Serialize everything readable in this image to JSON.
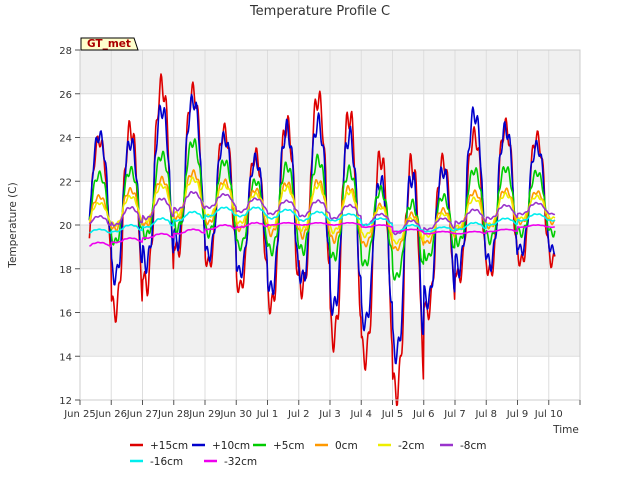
{
  "chart_data": {
    "type": "line",
    "title": "Temperature Profile C",
    "xlabel": "Time",
    "ylabel": "Temperature (C)",
    "badge": "GT_met",
    "ylim": [
      12,
      28
    ],
    "yticks": [
      12,
      14,
      16,
      18,
      20,
      22,
      24,
      26,
      28
    ],
    "xlim": [
      0,
      16
    ],
    "xticks": [
      0,
      1,
      2,
      3,
      4,
      5,
      6,
      7,
      8,
      9,
      10,
      11,
      12,
      13,
      14,
      15,
      16
    ],
    "xtick_labels": [
      "Jun 25",
      "Jun 26",
      "Jun 27",
      "Jun 28",
      "Jun 29",
      "Jun 30",
      "Jul 1",
      "Jul 2",
      "Jul 3",
      "Jul 4",
      "Jul 5",
      "Jul 6",
      "Jul 7",
      "Jul 8",
      "Jul 9",
      "Jul 10"
    ],
    "grid": true,
    "legend_position": "bottom",
    "x_days_start": 0.3,
    "x_days_end": 15.2,
    "series": [
      {
        "name": "+15cm",
        "color": "#dd0000",
        "daily_min": [
          18.5,
          16.0,
          17.2,
          18.8,
          18.2,
          17.1,
          16.3,
          17.1,
          14.8,
          13.9,
          12.3,
          16.0,
          17.6,
          17.8,
          18.3
        ],
        "daily_max": [
          23.9,
          24.4,
          26.4,
          26.1,
          24.3,
          23.2,
          24.6,
          25.8,
          25.0,
          23.1,
          22.8,
          22.9,
          24.1,
          24.5,
          24.0
        ]
      },
      {
        "name": "+10cm",
        "color": "#0000cc",
        "daily_min": [
          19.0,
          17.6,
          18.2,
          19.2,
          18.6,
          17.8,
          17.0,
          17.5,
          16.2,
          15.5,
          14.1,
          16.5,
          18.0,
          18.2,
          18.8
        ],
        "daily_max": [
          24.1,
          23.8,
          25.3,
          25.7,
          24.0,
          23.0,
          24.4,
          24.7,
          24.1,
          22.0,
          22.2,
          22.5,
          25.1,
          24.4,
          23.6
        ]
      },
      {
        "name": "+5cm",
        "color": "#00cc00",
        "daily_min": [
          19.5,
          19.2,
          19.5,
          19.8,
          19.6,
          19.0,
          18.8,
          18.8,
          18.5,
          18.2,
          17.6,
          18.5,
          19.2,
          19.3,
          19.6
        ],
        "daily_max": [
          22.3,
          22.5,
          23.2,
          23.8,
          22.9,
          22.0,
          22.7,
          23.0,
          22.5,
          21.6,
          21.0,
          21.3,
          22.5,
          22.6,
          22.4
        ]
      },
      {
        "name": "0cm",
        "color": "#ff9900",
        "daily_min": [
          19.8,
          19.8,
          20.0,
          20.3,
          20.1,
          19.8,
          19.6,
          19.5,
          19.3,
          19.1,
          18.9,
          19.2,
          19.8,
          19.9,
          20.1
        ],
        "daily_max": [
          21.3,
          21.6,
          22.1,
          22.4,
          22.0,
          21.6,
          21.9,
          22.0,
          21.7,
          20.9,
          20.5,
          20.7,
          21.5,
          21.6,
          21.5
        ]
      },
      {
        "name": "-2cm",
        "color": "#eeee00",
        "daily_min": [
          20.0,
          20.0,
          20.2,
          20.5,
          20.4,
          20.1,
          19.9,
          19.8,
          19.7,
          19.5,
          19.2,
          19.5,
          19.9,
          20.0,
          20.3
        ],
        "daily_max": [
          21.0,
          21.3,
          21.8,
          22.1,
          21.8,
          21.4,
          21.7,
          21.8,
          21.5,
          20.8,
          20.3,
          20.5,
          21.2,
          21.4,
          21.3
        ]
      },
      {
        "name": "-8cm",
        "color": "#9933cc",
        "daily_min": [
          19.9,
          20.0,
          20.3,
          20.7,
          20.8,
          20.6,
          20.5,
          20.4,
          20.3,
          20.0,
          19.6,
          19.8,
          20.1,
          20.3,
          20.5
        ],
        "daily_max": [
          20.4,
          20.8,
          21.2,
          21.5,
          21.4,
          21.2,
          21.1,
          21.1,
          20.9,
          20.5,
          20.2,
          20.3,
          20.7,
          20.9,
          21.0
        ]
      },
      {
        "name": "-16cm",
        "color": "#00eeee",
        "daily_min": [
          19.6,
          19.7,
          19.9,
          20.2,
          20.4,
          20.4,
          20.3,
          20.2,
          20.2,
          20.0,
          19.7,
          19.7,
          19.8,
          20.0,
          20.2
        ],
        "daily_max": [
          19.8,
          20.0,
          20.3,
          20.6,
          20.8,
          20.8,
          20.7,
          20.6,
          20.5,
          20.3,
          20.0,
          19.9,
          20.1,
          20.3,
          20.5
        ]
      },
      {
        "name": "-32cm",
        "color": "#ee00ee",
        "daily_min": [
          19.0,
          19.2,
          19.4,
          19.6,
          19.8,
          19.9,
          20.0,
          20.0,
          20.0,
          19.9,
          19.7,
          19.6,
          19.6,
          19.7,
          19.9
        ],
        "daily_max": [
          19.2,
          19.4,
          19.6,
          19.8,
          20.0,
          20.1,
          20.1,
          20.1,
          20.1,
          20.0,
          19.8,
          19.7,
          19.7,
          19.8,
          20.0
        ]
      }
    ]
  }
}
